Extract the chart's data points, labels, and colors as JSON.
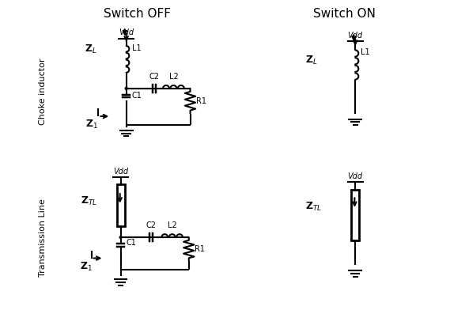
{
  "title_off": "Switch OFF",
  "title_on": "Switch ON",
  "label_choke": "Choke inductor",
  "label_tl": "Transmission Line",
  "lw": 1.5,
  "border_lw": 1.0,
  "font_size_title": 11,
  "font_size_label": 8,
  "background": "#ffffff"
}
